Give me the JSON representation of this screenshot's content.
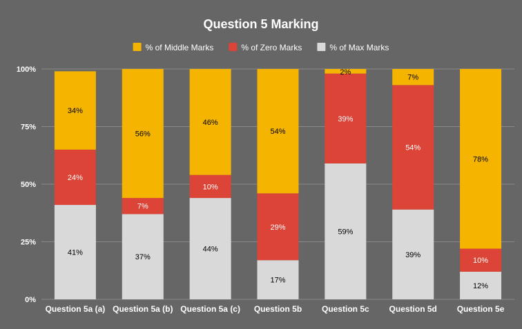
{
  "chart_data": {
    "type": "bar",
    "stacked": true,
    "title": "Question 5 Marking",
    "categories": [
      "Question 5a (a)",
      "Question 5a (b)",
      "Question 5a (c)",
      "Question 5b",
      "Question 5c",
      "Question 5d",
      "Question 5e"
    ],
    "series": [
      {
        "name": "% of Max Marks",
        "color": "#d9d9d9",
        "values": [
          41,
          37,
          44,
          17,
          59,
          39,
          12
        ],
        "labels": [
          "41%",
          "37%",
          "44%",
          "17%",
          "59%",
          "39%",
          "12%"
        ],
        "label_color": "#000000"
      },
      {
        "name": "% of Zero Marks",
        "color": "#db4437",
        "values": [
          24,
          7,
          10,
          29,
          39,
          54,
          10
        ],
        "labels": [
          "24%",
          "7%",
          "10%",
          "29%",
          "39%",
          "54%",
          "10%"
        ],
        "label_color": "#ffffff"
      },
      {
        "name": "% of Middle Marks",
        "color": "#f4b400",
        "values": [
          34,
          56,
          46,
          54,
          2,
          7,
          78
        ],
        "labels": [
          "34%",
          "56%",
          "46%",
          "54%",
          "2%",
          "7%",
          "78%"
        ],
        "label_color": "#000000"
      }
    ],
    "legend_order": [
      "% of Middle Marks",
      "% of Zero Marks",
      "% of Max Marks"
    ],
    "legend_position": "top",
    "ylim": [
      0,
      100
    ],
    "yticks": [
      0,
      25,
      50,
      75,
      100
    ],
    "ytick_labels": [
      "0%",
      "25%",
      "50%",
      "75%",
      "100%"
    ],
    "grid": true,
    "background": "#666666",
    "gridline_color": "#8a8a8a"
  }
}
